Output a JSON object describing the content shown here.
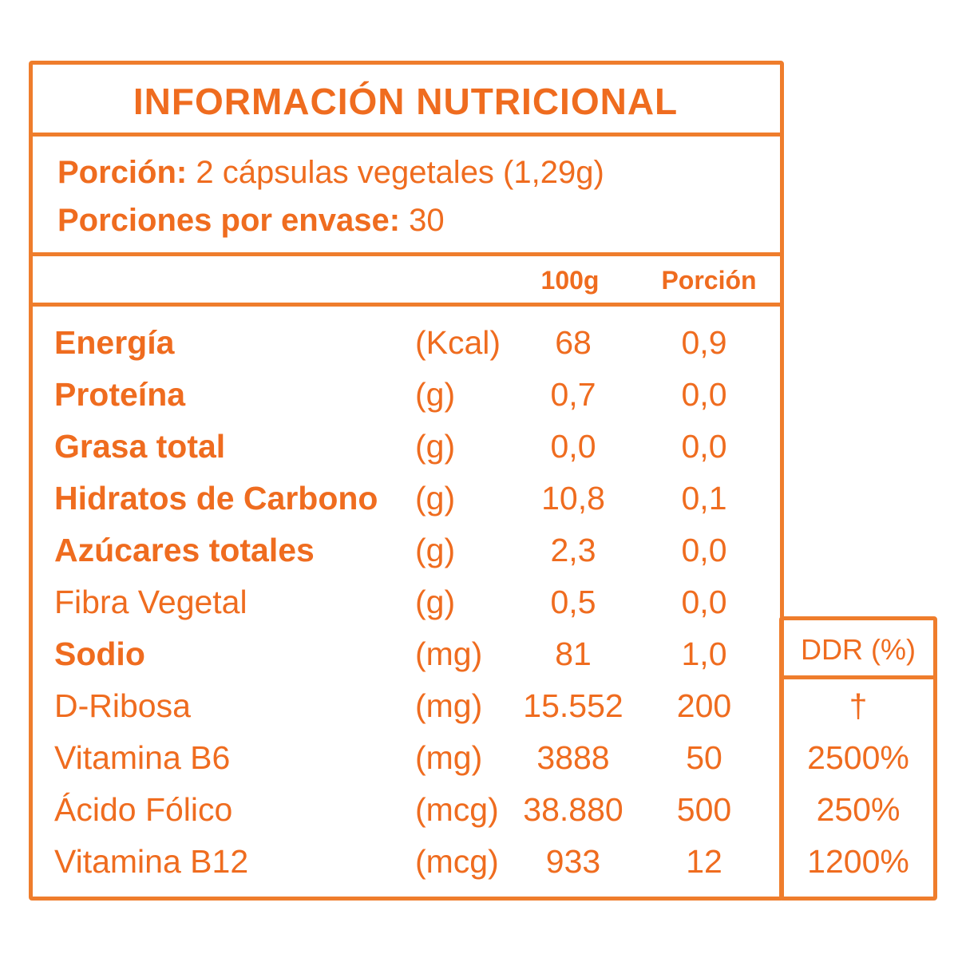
{
  "title": "INFORMACIÓN NUTRICIONAL",
  "serving": {
    "label": "Porción:",
    "value": "2 cápsulas vegetales (1,29g)"
  },
  "servings_per_container": {
    "label": "Porciones por envase:",
    "value": "30"
  },
  "table": {
    "headers": [
      "100g",
      "Porción"
    ],
    "rows": [
      {
        "name": "Energía",
        "unit": "(Kcal)",
        "per_100g": "68",
        "per_serving": "0,9",
        "weight": "bold"
      },
      {
        "name": "Proteína",
        "unit": "(g)",
        "per_100g": "0,7",
        "per_serving": "0,0",
        "weight": "bold"
      },
      {
        "name": "Grasa total",
        "unit": "(g)",
        "per_100g": "0,0",
        "per_serving": "0,0",
        "weight": "bold"
      },
      {
        "name": "Hidratos de Carbono",
        "unit": "(g)",
        "per_100g": "10,8",
        "per_serving": "0,1",
        "weight": "bold"
      },
      {
        "name": "Azúcares totales",
        "unit": "(g)",
        "per_100g": "2,3",
        "per_serving": "0,0",
        "weight": "bold"
      },
      {
        "name": "Fibra Vegetal",
        "unit": "(g)",
        "per_100g": "0,5",
        "per_serving": "0,0",
        "weight": "normal"
      },
      {
        "name": "Sodio",
        "unit": "(mg)",
        "per_100g": "81",
        "per_serving": "1,0",
        "weight": "bold"
      },
      {
        "name": "D-Ribosa",
        "unit": "(mg)",
        "per_100g": "15.552",
        "per_serving": "200",
        "weight": "normal"
      },
      {
        "name": "Vitamina B6",
        "unit": "(mg)",
        "per_100g": "3888",
        "per_serving": "50",
        "weight": "normal"
      },
      {
        "name": "Ácido Fólico",
        "unit": "(mcg)",
        "per_100g": "38.880",
        "per_serving": "500",
        "weight": "normal"
      },
      {
        "name": "Vitamina B12",
        "unit": "(mcg)",
        "per_100g": "933",
        "per_serving": "12",
        "weight": "normal"
      }
    ]
  },
  "ddr": {
    "header": "DDR (%)",
    "values": [
      "†",
      "2500%",
      "250%",
      "1200%"
    ]
  }
}
